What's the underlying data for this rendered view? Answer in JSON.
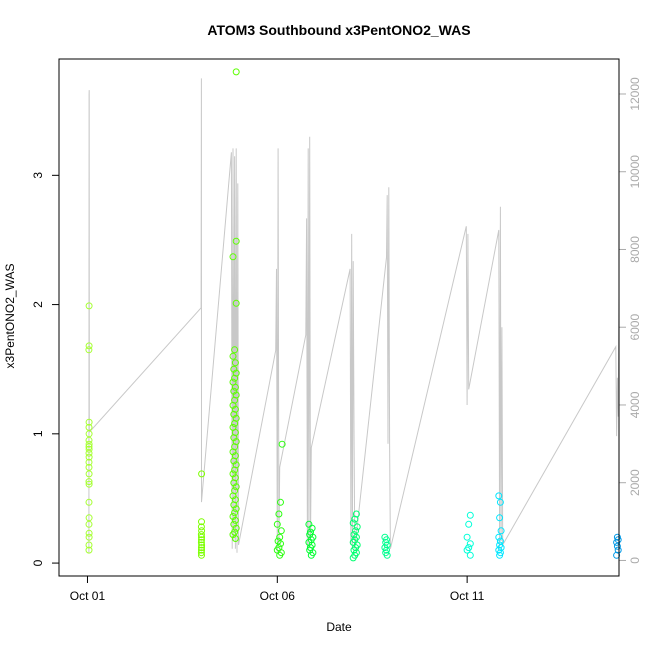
{
  "chart_data": {
    "type": "scatter",
    "title": "ATOM3 Southbound x3PentONO2_WAS",
    "xlabel": "Date",
    "ylabel": "x3PentONO2_WAS",
    "x_ticks": [
      "Oct 01",
      "Oct 06",
      "Oct 11"
    ],
    "y_ticks": [
      "0",
      "1",
      "2",
      "3"
    ],
    "y2_ticks": [
      "0",
      "2000",
      "4000",
      "6000",
      "8000",
      "10000",
      "12000"
    ],
    "xlim": [
      "2016-09-30T06:00",
      "2016-10-15T00:00"
    ],
    "ylim": [
      -0.1,
      3.9
    ],
    "y2lim": [
      -400,
      12900
    ],
    "colors": {
      "points_scale": [
        "#a6ff33",
        "#7cff00",
        "#3dff00",
        "#00ff30",
        "#00ff80",
        "#00ffc0",
        "#00e6ff",
        "#0099e6"
      ],
      "altitude_line": "#c8c8c8"
    },
    "series": [
      {
        "type": "points",
        "color": "#a6ff33",
        "points": [
          [
            "2016-10-01T01:00",
            1.99
          ],
          [
            "2016-10-01T01:00",
            1.68
          ],
          [
            "2016-10-01T00:55",
            1.65
          ],
          [
            "2016-10-01T01:00",
            1.09
          ],
          [
            "2016-10-01T00:58",
            1.05
          ],
          [
            "2016-10-01T01:02",
            1.0
          ],
          [
            "2016-10-01T00:56",
            0.95
          ],
          [
            "2016-10-01T01:00",
            0.92
          ],
          [
            "2016-10-01T00:58",
            0.9
          ],
          [
            "2016-10-01T01:01",
            0.88
          ],
          [
            "2016-10-01T00:57",
            0.85
          ],
          [
            "2016-10-01T01:00",
            0.82
          ],
          [
            "2016-10-01T00:59",
            0.78
          ],
          [
            "2016-10-01T00:58",
            0.74
          ],
          [
            "2016-10-01T01:00",
            0.69
          ],
          [
            "2016-10-01T00:57",
            0.63
          ],
          [
            "2016-10-01T01:00",
            0.61
          ],
          [
            "2016-10-01T00:59",
            0.47
          ],
          [
            "2016-10-01T01:00",
            0.35
          ],
          [
            "2016-10-01T00:58",
            0.3
          ],
          [
            "2016-10-01T01:01",
            0.23
          ],
          [
            "2016-10-01T01:00",
            0.2
          ],
          [
            "2016-10-01T00:59",
            0.14
          ],
          [
            "2016-10-01T00:58",
            0.1
          ]
        ]
      },
      {
        "type": "points",
        "color": "#7cff00",
        "points": [
          [
            "2016-10-04T00:10",
            0.69
          ],
          [
            "2016-10-04T00:05",
            0.32
          ],
          [
            "2016-10-04T00:00",
            0.28
          ],
          [
            "2016-10-04T00:08",
            0.25
          ],
          [
            "2016-10-04T00:02",
            0.22
          ],
          [
            "2016-10-04T00:06",
            0.2
          ],
          [
            "2016-10-04T00:04",
            0.18
          ],
          [
            "2016-10-04T00:00",
            0.16
          ],
          [
            "2016-10-04T00:07",
            0.14
          ],
          [
            "2016-10-04T00:03",
            0.12
          ],
          [
            "2016-10-04T00:05",
            0.1
          ],
          [
            "2016-10-04T00:01",
            0.08
          ],
          [
            "2016-10-04T00:06",
            0.06
          ]
        ]
      },
      {
        "type": "points",
        "color": "#5cff00",
        "points": [
          [
            "2016-10-04T22:00",
            3.8
          ],
          [
            "2016-10-04T22:00",
            2.49
          ],
          [
            "2016-10-04T20:00",
            2.37
          ],
          [
            "2016-10-04T22:00",
            2.01
          ],
          [
            "2016-10-04T21:00",
            1.65
          ],
          [
            "2016-10-04T20:00",
            1.6
          ],
          [
            "2016-10-04T21:30",
            1.55
          ],
          [
            "2016-10-04T20:30",
            1.5
          ],
          [
            "2016-10-04T22:00",
            1.47
          ],
          [
            "2016-10-04T21:00",
            1.43
          ],
          [
            "2016-10-04T20:00",
            1.4
          ],
          [
            "2016-10-04T21:30",
            1.36
          ],
          [
            "2016-10-04T20:30",
            1.33
          ],
          [
            "2016-10-04T22:00",
            1.3
          ],
          [
            "2016-10-04T21:00",
            1.26
          ],
          [
            "2016-10-04T20:00",
            1.22
          ],
          [
            "2016-10-04T21:30",
            1.19
          ],
          [
            "2016-10-04T20:30",
            1.15
          ],
          [
            "2016-10-04T22:00",
            1.12
          ],
          [
            "2016-10-04T21:00",
            1.08
          ],
          [
            "2016-10-04T20:00",
            1.05
          ],
          [
            "2016-10-04T21:30",
            1.01
          ],
          [
            "2016-10-04T20:30",
            0.97
          ],
          [
            "2016-10-04T22:00",
            0.94
          ],
          [
            "2016-10-04T21:00",
            0.9
          ],
          [
            "2016-10-04T20:00",
            0.86
          ],
          [
            "2016-10-04T21:30",
            0.83
          ],
          [
            "2016-10-04T20:30",
            0.79
          ],
          [
            "2016-10-04T22:00",
            0.76
          ],
          [
            "2016-10-04T21:00",
            0.72
          ],
          [
            "2016-10-04T20:00",
            0.69
          ],
          [
            "2016-10-04T21:30",
            0.66
          ],
          [
            "2016-10-04T20:30",
            0.62
          ],
          [
            "2016-10-04T22:00",
            0.59
          ],
          [
            "2016-10-04T21:00",
            0.56
          ],
          [
            "2016-10-04T20:00",
            0.52
          ],
          [
            "2016-10-04T21:30",
            0.49
          ],
          [
            "2016-10-04T20:30",
            0.45
          ],
          [
            "2016-10-04T22:00",
            0.42
          ],
          [
            "2016-10-04T21:00",
            0.39
          ],
          [
            "2016-10-04T20:00",
            0.36
          ],
          [
            "2016-10-04T21:30",
            0.33
          ],
          [
            "2016-10-04T20:30",
            0.3
          ],
          [
            "2016-10-04T22:00",
            0.27
          ],
          [
            "2016-10-04T21:00",
            0.24
          ],
          [
            "2016-10-04T20:00",
            0.22
          ],
          [
            "2016-10-04T21:30",
            0.19
          ]
        ]
      },
      {
        "type": "points",
        "color": "#2cff10",
        "points": [
          [
            "2016-10-06T03:00",
            0.92
          ],
          [
            "2016-10-06T02:00",
            0.47
          ],
          [
            "2016-10-06T01:00",
            0.38
          ],
          [
            "2016-10-06T00:00",
            0.3
          ],
          [
            "2016-10-06T02:30",
            0.25
          ],
          [
            "2016-10-06T01:30",
            0.2
          ],
          [
            "2016-10-06T00:30",
            0.17
          ],
          [
            "2016-10-06T02:00",
            0.15
          ],
          [
            "2016-10-06T01:00",
            0.12
          ],
          [
            "2016-10-06T00:00",
            0.1
          ],
          [
            "2016-10-06T02:30",
            0.08
          ],
          [
            "2016-10-06T01:30",
            0.06
          ]
        ]
      },
      {
        "type": "points",
        "color": "#00ff30",
        "points": [
          [
            "2016-10-06T20:00",
            0.3
          ],
          [
            "2016-10-06T22:00",
            0.27
          ],
          [
            "2016-10-06T21:00",
            0.24
          ],
          [
            "2016-10-06T20:30",
            0.22
          ],
          [
            "2016-10-06T22:30",
            0.2
          ],
          [
            "2016-10-06T21:30",
            0.18
          ],
          [
            "2016-10-06T20:00",
            0.16
          ],
          [
            "2016-10-06T22:00",
            0.14
          ],
          [
            "2016-10-06T21:00",
            0.12
          ],
          [
            "2016-10-06T20:30",
            0.1
          ],
          [
            "2016-10-06T22:30",
            0.08
          ],
          [
            "2016-10-06T21:30",
            0.06
          ]
        ]
      },
      {
        "type": "points",
        "color": "#00ff70",
        "points": [
          [
            "2016-10-08T02:00",
            0.38
          ],
          [
            "2016-10-08T01:00",
            0.34
          ],
          [
            "2016-10-08T00:00",
            0.31
          ],
          [
            "2016-10-08T02:30",
            0.28
          ],
          [
            "2016-10-08T01:30",
            0.25
          ],
          [
            "2016-10-08T00:30",
            0.22
          ],
          [
            "2016-10-08T02:00",
            0.2
          ],
          [
            "2016-10-08T01:00",
            0.18
          ],
          [
            "2016-10-08T00:00",
            0.16
          ],
          [
            "2016-10-08T02:30",
            0.14
          ],
          [
            "2016-10-08T01:30",
            0.12
          ],
          [
            "2016-10-08T00:30",
            0.1
          ],
          [
            "2016-10-08T02:00",
            0.08
          ],
          [
            "2016-10-08T01:00",
            0.06
          ],
          [
            "2016-10-08T00:00",
            0.04
          ]
        ]
      },
      {
        "type": "points",
        "color": "#00ff90",
        "points": [
          [
            "2016-10-08T20:00",
            0.2
          ],
          [
            "2016-10-08T21:00",
            0.18
          ],
          [
            "2016-10-08T20:30",
            0.16
          ],
          [
            "2016-10-08T21:30",
            0.14
          ],
          [
            "2016-10-08T20:00",
            0.12
          ],
          [
            "2016-10-08T21:00",
            0.1
          ],
          [
            "2016-10-08T20:30",
            0.08
          ],
          [
            "2016-10-08T21:30",
            0.06
          ]
        ]
      },
      {
        "type": "points",
        "color": "#00ffd8",
        "points": [
          [
            "2016-10-11T02:00",
            0.37
          ],
          [
            "2016-10-11T01:00",
            0.3
          ],
          [
            "2016-10-11T00:00",
            0.2
          ],
          [
            "2016-10-11T02:00",
            0.15
          ],
          [
            "2016-10-11T01:00",
            0.12
          ],
          [
            "2016-10-11T00:00",
            0.1
          ],
          [
            "2016-10-11T02:00",
            0.06
          ]
        ]
      },
      {
        "type": "points",
        "color": "#00e6ff",
        "points": [
          [
            "2016-10-11T20:00",
            0.52
          ],
          [
            "2016-10-11T21:00",
            0.47
          ],
          [
            "2016-10-11T20:30",
            0.35
          ],
          [
            "2016-10-11T21:30",
            0.25
          ],
          [
            "2016-10-11T20:00",
            0.2
          ],
          [
            "2016-10-11T21:00",
            0.17
          ],
          [
            "2016-10-11T20:30",
            0.14
          ],
          [
            "2016-10-11T21:30",
            0.12
          ],
          [
            "2016-10-11T20:00",
            0.1
          ],
          [
            "2016-10-11T21:00",
            0.08
          ],
          [
            "2016-10-11T20:30",
            0.06
          ]
        ]
      },
      {
        "type": "points",
        "color": "#0099e6",
        "points": [
          [
            "2016-10-14T23:00",
            0.2
          ],
          [
            "2016-10-14T23:30",
            0.18
          ],
          [
            "2016-10-14T22:30",
            0.16
          ],
          [
            "2016-10-14T23:00",
            0.13
          ],
          [
            "2016-10-14T23:30",
            0.1
          ],
          [
            "2016-10-14T22:30",
            0.06
          ]
        ]
      },
      {
        "type": "line",
        "axis": "right",
        "color": "#c8c8c8",
        "points": [
          [
            "2016-10-01T00:55",
            200
          ],
          [
            "2016-10-01T01:00",
            12000
          ],
          [
            "2016-10-01T01:05",
            12100
          ],
          [
            "2016-10-01T01:10",
            3300
          ],
          [
            "2016-10-03T23:50",
            6500
          ],
          [
            "2016-10-04T00:00",
            12400
          ],
          [
            "2016-10-04T00:05",
            1500
          ],
          [
            "2016-10-04T19:00",
            10500
          ],
          [
            "2016-10-04T19:30",
            300
          ],
          [
            "2016-10-04T20:00",
            10600
          ],
          [
            "2016-10-04T20:30",
            500
          ],
          [
            "2016-10-04T21:00",
            10400
          ],
          [
            "2016-10-04T21:30",
            300
          ],
          [
            "2016-10-04T22:00",
            10600
          ],
          [
            "2016-10-04T22:30",
            200
          ],
          [
            "2016-10-04T23:00",
            9700
          ],
          [
            "2016-10-04T23:30",
            400
          ],
          [
            "2016-10-05T23:00",
            5400
          ],
          [
            "2016-10-05T23:30",
            7500
          ],
          [
            "2016-10-06T00:00",
            200
          ],
          [
            "2016-10-06T00:30",
            10600
          ],
          [
            "2016-10-06T01:00",
            400
          ],
          [
            "2016-10-06T01:30",
            2400
          ],
          [
            "2016-10-06T18:00",
            5800
          ],
          [
            "2016-10-06T18:30",
            8800
          ],
          [
            "2016-10-06T19:00",
            300
          ],
          [
            "2016-10-06T19:30",
            10600
          ],
          [
            "2016-10-06T20:00",
            300
          ],
          [
            "2016-10-06T20:30",
            10900
          ],
          [
            "2016-10-06T21:00",
            500
          ],
          [
            "2016-10-06T21:30",
            2900
          ],
          [
            "2016-10-07T22:00",
            7500
          ],
          [
            "2016-10-07T22:30",
            400
          ],
          [
            "2016-10-07T23:00",
            8400
          ],
          [
            "2016-10-07T23:30",
            300
          ],
          [
            "2016-10-08T00:00",
            7700
          ],
          [
            "2016-10-08T00:30",
            3400
          ],
          [
            "2016-10-08T01:00",
            300
          ],
          [
            "2016-10-08T21:00",
            7800
          ],
          [
            "2016-10-08T21:30",
            9400
          ],
          [
            "2016-10-08T22:00",
            3000
          ],
          [
            "2016-10-08T22:30",
            9600
          ],
          [
            "2016-10-08T23:00",
            3000
          ],
          [
            "2016-10-08T23:30",
            300
          ],
          [
            "2016-10-10T23:30",
            8600
          ],
          [
            "2016-10-11T00:00",
            4000
          ],
          [
            "2016-10-11T00:30",
            8400
          ],
          [
            "2016-10-11T01:00",
            4400
          ],
          [
            "2016-10-11T20:00",
            8500
          ],
          [
            "2016-10-11T20:30",
            300
          ],
          [
            "2016-10-11T21:00",
            9100
          ],
          [
            "2016-10-11T21:30",
            500
          ],
          [
            "2016-10-11T22:00",
            6000
          ],
          [
            "2016-10-11T22:30",
            400
          ],
          [
            "2016-10-14T22:00",
            5500
          ],
          [
            "2016-10-14T22:30",
            3200
          ],
          [
            "2016-10-14T23:00",
            4700
          ],
          [
            "2016-10-14T23:30",
            3700
          ],
          [
            "2016-10-15T00:00",
            6800
          ]
        ]
      }
    ]
  }
}
